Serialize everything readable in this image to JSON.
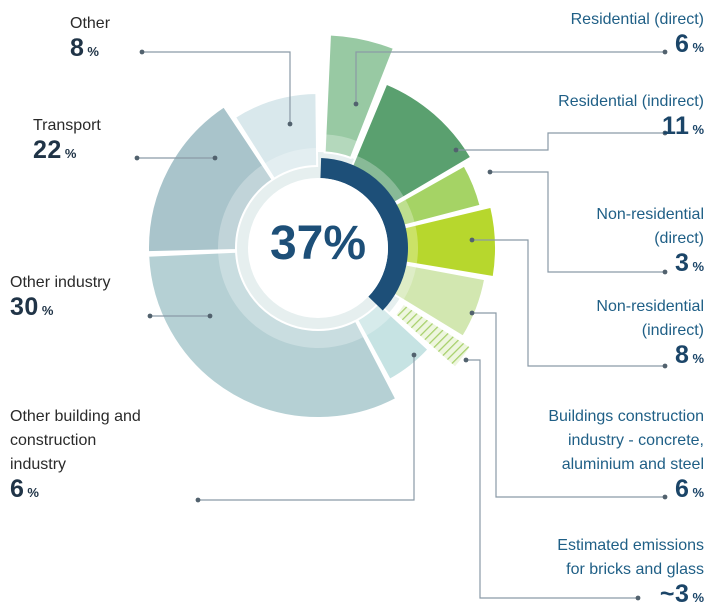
{
  "chart_data": {
    "type": "pie",
    "center_label": "37%",
    "slices": [
      {
        "label": "Residential (direct)",
        "value_text": "6",
        "unit": "%",
        "value": 6,
        "group": "buildings",
        "color": "#98c9a3"
      },
      {
        "label": "Residential (indirect)",
        "value_text": "11",
        "unit": "%",
        "value": 11,
        "group": "buildings",
        "color": "#5aa06f"
      },
      {
        "label": "Non-residential (direct)",
        "value_text": "3",
        "unit": "%",
        "value": 3,
        "group": "buildings",
        "color": "#a5d365"
      },
      {
        "label": "Non-residential (indirect)",
        "value_text": "8",
        "unit": "%",
        "value": 8,
        "group": "buildings",
        "color": "#b7d72d"
      },
      {
        "label": "Buildings construction industry - concrete, aluminium and steel",
        "value_text": "6",
        "unit": "%",
        "value": 6,
        "group": "buildings",
        "color": "#d2e7b0"
      },
      {
        "label": "Estimated emissions for bricks and glass",
        "value_text": "~3",
        "unit": "%",
        "value": 3,
        "group": "buildings",
        "color": "#c4e09e"
      },
      {
        "label": "Other building and construction industry",
        "value_text": "6",
        "unit": "%",
        "value": 6,
        "group": "other",
        "color": "#c6e3e3"
      },
      {
        "label": "Other industry",
        "value_text": "30",
        "unit": "%",
        "value": 30,
        "group": "other",
        "color": "#b5d0d4"
      },
      {
        "label": "Transport",
        "value_text": "22",
        "unit": "%",
        "value": 22,
        "group": "other",
        "color": "#a9c4cb"
      },
      {
        "label": "Other",
        "value_text": "8",
        "unit": "%",
        "value": 8,
        "group": "other",
        "color": "#d9e8ec"
      }
    ],
    "highlight_color": "#1d4f78"
  },
  "labels": {
    "res_direct": {
      "title": "Residential (direct)",
      "value": "6",
      "unit": "%"
    },
    "res_indirect": {
      "title": "Residential (indirect)",
      "value": "11",
      "unit": "%"
    },
    "nonres_direct": {
      "title_1": "Non-residential",
      "title_2": "(direct)",
      "value": "3",
      "unit": "%"
    },
    "nonres_indirect": {
      "title_1": "Non-residential",
      "title_2": "(indirect)",
      "value": "8",
      "unit": "%"
    },
    "construction": {
      "title_1": "Buildings construction",
      "title_2": "industry - concrete,",
      "title_3": "aluminium and steel",
      "value": "6",
      "unit": "%"
    },
    "bricks": {
      "title_1": "Estimated emissions",
      "title_2": "for bricks and glass",
      "value": "~3",
      "unit": "%"
    },
    "other": {
      "title": "Other",
      "value": "8",
      "unit": "%"
    },
    "transport": {
      "title": "Transport",
      "value": "22",
      "unit": "%"
    },
    "other_industry": {
      "title": "Other industry",
      "value": "30",
      "unit": "%"
    },
    "other_building": {
      "title_1": "Other building and",
      "title_2": "construction",
      "title_3": "industry",
      "value": "6",
      "unit": "%"
    }
  }
}
